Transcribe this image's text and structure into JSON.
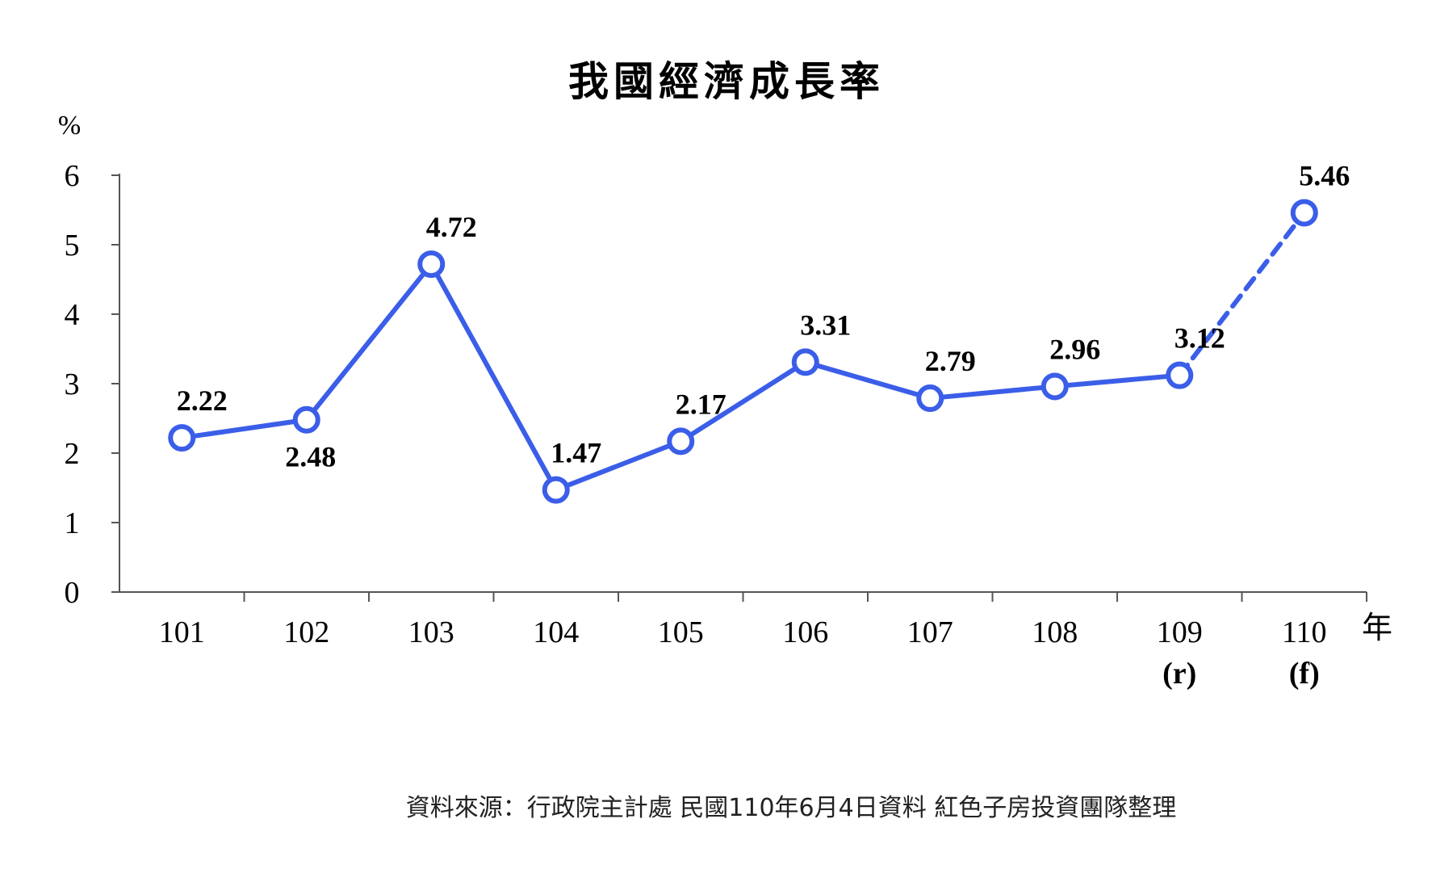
{
  "chart_data": {
    "type": "line",
    "title": "我國經濟成長率",
    "ylabel": "%",
    "xlabel": "年",
    "ylim": [
      0,
      6
    ],
    "yticks": [
      "0",
      "1",
      "2",
      "3",
      "4",
      "5",
      "6"
    ],
    "categories": [
      "101",
      "102",
      "103",
      "104",
      "105",
      "106",
      "107",
      "108",
      "109",
      "110"
    ],
    "category_notes": [
      "",
      "",
      "",
      "",
      "",
      "",
      "",
      "",
      "(r)",
      "(f)"
    ],
    "values": [
      2.22,
      2.48,
      4.72,
      1.47,
      2.17,
      3.31,
      2.79,
      2.96,
      3.12,
      5.46
    ],
    "value_labels": [
      "2.22",
      "2.48",
      "4.72",
      "1.47",
      "2.17",
      "3.31",
      "2.79",
      "2.96",
      "3.12",
      "5.46"
    ],
    "forecast_from_index": 8,
    "line_color": "#3b5ee8",
    "grid": false
  },
  "source_note": "資料來源：行政院主計處 民國110年6月4日資料  紅色子房投資團隊整理"
}
